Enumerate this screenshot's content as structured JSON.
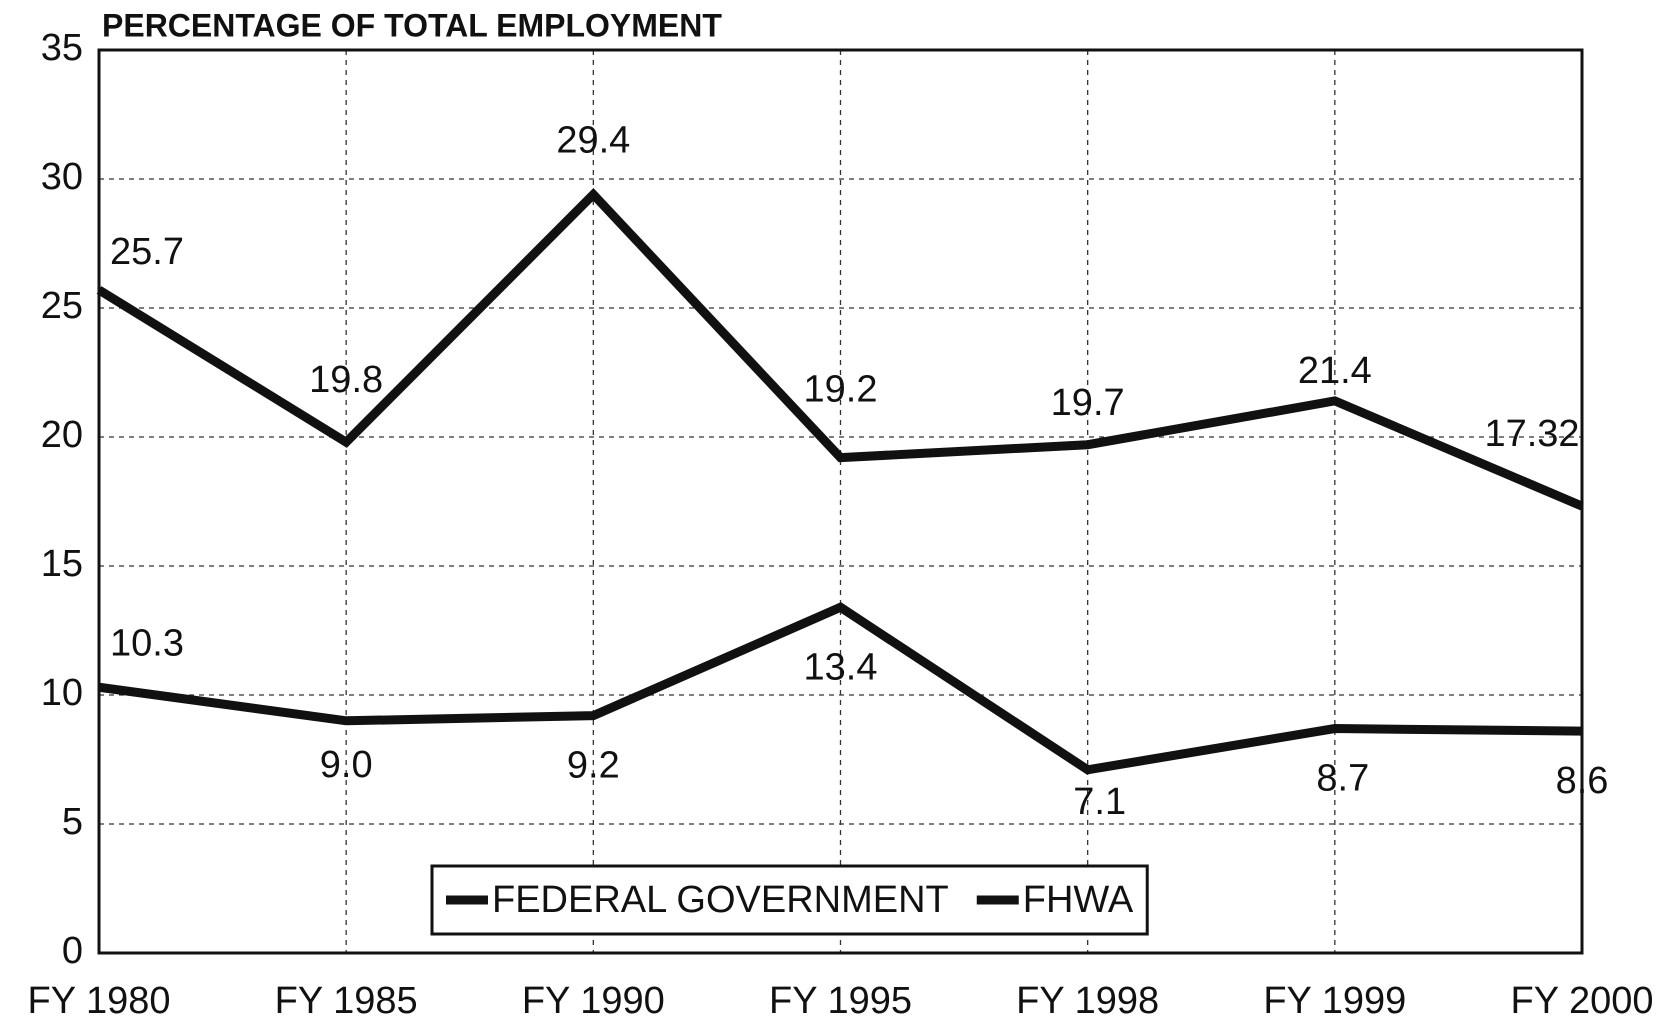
{
  "chart_data": {
    "type": "line",
    "title": "PERCENTAGE OF TOTAL EMPLOYMENT",
    "categories": [
      "FY 1980",
      "FY 1985",
      "FY 1990",
      "FY 1995",
      "FY 1998",
      "FY 1999",
      "FY 2000"
    ],
    "series": [
      {
        "name": "FEDERAL GOVERNMENT",
        "color": "#111111",
        "values": [
          25.7,
          19.8,
          29.4,
          19.2,
          19.7,
          21.4,
          17.32
        ]
      },
      {
        "name": "FHWA",
        "color": "#111111",
        "values": [
          10.3,
          9,
          9.2,
          13.4,
          7.1,
          8.7,
          8.6
        ],
        "value_labels": [
          "10.3",
          "9.0",
          "9.2",
          "13.4",
          "7.1",
          "8.7",
          "8.6"
        ]
      }
    ],
    "ylim": [
      0,
      35
    ],
    "yticks": [
      0,
      5,
      10,
      15,
      20,
      25,
      30,
      35
    ],
    "grid": true,
    "legend": "bottom"
  }
}
